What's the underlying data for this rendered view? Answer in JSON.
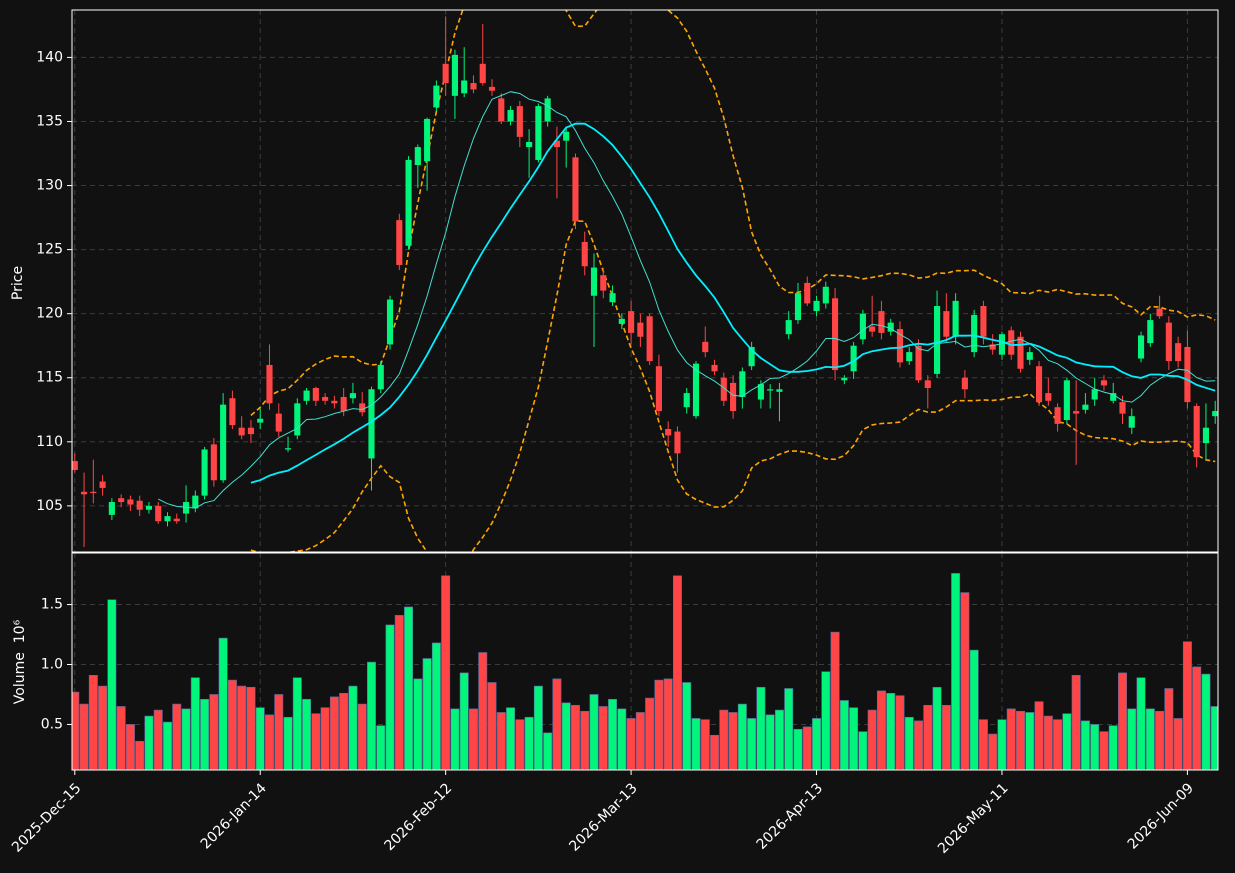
{
  "chart_data": {
    "type": "candlestick",
    "ylabel": "Price",
    "volume_ylabel": "Volume  10⁶",
    "xlim": [
      -0.3,
      123.3
    ],
    "xticks": [
      {
        "value": 0,
        "label": "2025-Dec-15"
      },
      {
        "value": 20,
        "label": "2026-Jan-14"
      },
      {
        "value": 40,
        "label": "2026-Feb-12"
      },
      {
        "value": 60,
        "label": "2026-Mar-13"
      },
      {
        "value": 80,
        "label": "2026-Apr-13"
      },
      {
        "value": 100,
        "label": "2026-May-11"
      },
      {
        "value": 120,
        "label": "2026-Jun-09"
      }
    ],
    "ylim": [
      101.4,
      143.7
    ],
    "yticks": [
      105,
      110,
      115,
      120,
      125,
      130,
      135,
      140
    ],
    "volume_ylim": [
      0.12,
      1.93
    ],
    "volume_yticks": [
      0.5,
      {
        "value": 1,
        "label": "1.0"
      },
      1.5
    ],
    "grid": true,
    "up_color": "#00f57a",
    "down_color": "#ff4545",
    "mav": [
      10,
      20
    ],
    "mav_colors": [
      "#40e0d0",
      "#00f0ff"
    ],
    "bollinger": {
      "window": 20,
      "std": 2,
      "color": "#ffa500"
    },
    "open": [
      108.5,
      106.1,
      106.1,
      106.9,
      104.3,
      105.6,
      105.5,
      105.4,
      104.7,
      105.0,
      103.8,
      104.0,
      104.4,
      104.8,
      105.8,
      109.8,
      107.0,
      113.4,
      111.1,
      111.1,
      111.5,
      116.0,
      112.2,
      109.4,
      110.5,
      113.2,
      114.2,
      113.5,
      113.2,
      113.5,
      113.4,
      113.0,
      108.7,
      114.1,
      117.6,
      127.3,
      125.3,
      131.6,
      131.9,
      136.1,
      139.5,
      137.0,
      137.2,
      138.0,
      139.5,
      137.7,
      136.8,
      135.0,
      136.2,
      133.0,
      132.0,
      135.0,
      133.5,
      133.5,
      132.2,
      125.6,
      121.4,
      123.0,
      120.9,
      119.2,
      120.2,
      119.3,
      119.8,
      115.9,
      111.0,
      110.8,
      112.7,
      112.0,
      117.8,
      116.0,
      115.0,
      114.6,
      113.5,
      115.9,
      113.3,
      114.0,
      113.9,
      118.4,
      119.5,
      122.4,
      120.2,
      120.8,
      121.2,
      114.8,
      115.5,
      118.0,
      119.0,
      120.2,
      118.6,
      118.8,
      116.3,
      117.5,
      114.8,
      115.3,
      120.2,
      118.2,
      115.0,
      117.0,
      120.6,
      117.6,
      116.8,
      118.7,
      118.2,
      116.4,
      115.9,
      113.8,
      112.7,
      111.7,
      112.4,
      112.5,
      113.3,
      114.8,
      113.2,
      113.1,
      111.1,
      116.5,
      117.7,
      120.4,
      119.3,
      117.7,
      117.4,
      112.8,
      109.9,
      112.0
    ],
    "high": [
      109.1,
      107.6,
      108.6,
      107.4,
      105.6,
      105.9,
      105.8,
      105.8,
      105.3,
      105.3,
      104.5,
      104.4,
      106.6,
      106.2,
      109.6,
      110.3,
      113.8,
      114.0,
      112.0,
      111.7,
      112.6,
      117.6,
      113.0,
      110.4,
      113.4,
      114.2,
      114.3,
      113.8,
      113.6,
      114.2,
      114.6,
      113.9,
      114.3,
      116.3,
      121.4,
      127.8,
      132.3,
      133.2,
      135.3,
      138.2,
      143.2,
      140.6,
      140.8,
      138.6,
      142.6,
      138.3,
      137.2,
      136.2,
      136.6,
      134.4,
      136.4,
      137.0,
      134.6,
      134.6,
      132.5,
      126.4,
      124.7,
      123.6,
      122.2,
      120.0,
      121.0,
      120.0,
      120.0,
      116.8,
      111.6,
      111.2,
      114.2,
      116.3,
      119.0,
      116.4,
      115.4,
      115.2,
      115.8,
      117.8,
      114.8,
      114.5,
      114.6,
      120.2,
      122.4,
      122.9,
      121.4,
      122.5,
      122.0,
      115.2,
      117.8,
      120.3,
      121.4,
      121.0,
      119.6,
      119.4,
      117.4,
      118.0,
      115.2,
      121.8,
      121.6,
      121.6,
      115.6,
      120.3,
      121.0,
      118.4,
      118.6,
      119.0,
      118.6,
      117.4,
      116.3,
      115.0,
      113.0,
      115.0,
      114.8,
      113.8,
      115.0,
      115.2,
      114.6,
      113.6,
      112.6,
      118.6,
      120.0,
      121.4,
      119.8,
      118.2,
      118.7,
      113.0,
      113.0,
      113.2
    ],
    "low": [
      107.6,
      101.8,
      105.2,
      105.8,
      103.9,
      104.9,
      104.6,
      104.2,
      104.4,
      103.6,
      103.4,
      103.6,
      103.7,
      104.5,
      105.5,
      106.5,
      106.8,
      111.0,
      110.2,
      109.9,
      111.0,
      112.5,
      110.4,
      109.2,
      110.2,
      112.9,
      112.8,
      112.9,
      112.6,
      112.0,
      113.0,
      112.0,
      106.2,
      113.8,
      117.2,
      123.4,
      125.0,
      129.8,
      129.6,
      135.8,
      137.0,
      135.2,
      136.9,
      137.2,
      137.8,
      137.0,
      134.8,
      134.7,
      133.0,
      130.6,
      131.8,
      134.6,
      129.0,
      131.4,
      126.6,
      123.0,
      117.4,
      121.2,
      120.6,
      118.8,
      117.6,
      117.4,
      116.0,
      112.0,
      109.6,
      107.6,
      112.2,
      111.8,
      116.6,
      115.2,
      112.8,
      111.8,
      112.6,
      115.6,
      112.6,
      112.6,
      111.6,
      118.0,
      119.2,
      120.6,
      119.8,
      120.4,
      114.8,
      114.5,
      114.9,
      117.6,
      118.2,
      118.0,
      118.3,
      115.8,
      116.0,
      114.6,
      112.6,
      115.0,
      117.8,
      117.6,
      113.4,
      116.6,
      117.6,
      116.8,
      116.4,
      116.4,
      115.4,
      116.0,
      112.8,
      112.8,
      110.8,
      111.4,
      108.2,
      112.2,
      112.8,
      114.0,
      113.0,
      111.4,
      110.6,
      116.2,
      117.4,
      119.6,
      115.6,
      115.8,
      112.6,
      108.0,
      108.6,
      111.4
    ],
    "close": [
      107.8,
      105.9,
      106.0,
      106.4,
      105.3,
      105.3,
      105.1,
      104.7,
      105.0,
      103.8,
      104.2,
      103.8,
      105.3,
      105.8,
      109.4,
      107.0,
      112.9,
      111.3,
      110.5,
      110.6,
      111.8,
      113.0,
      110.8,
      109.5,
      113.0,
      114.0,
      113.2,
      113.2,
      113.0,
      112.4,
      113.8,
      112.3,
      114.1,
      116.0,
      121.1,
      123.8,
      132.0,
      133.0,
      135.2,
      137.8,
      138.0,
      140.2,
      138.2,
      137.5,
      138.0,
      137.4,
      135.0,
      135.9,
      133.8,
      133.4,
      136.2,
      136.8,
      133.0,
      134.2,
      127.2,
      123.7,
      123.6,
      121.8,
      121.6,
      119.6,
      118.5,
      118.2,
      116.3,
      112.4,
      110.5,
      109.1,
      113.8,
      116.1,
      117.0,
      115.5,
      113.2,
      112.4,
      115.5,
      117.4,
      114.5,
      114.1,
      114.1,
      119.5,
      121.6,
      120.8,
      121.0,
      122.1,
      115.6,
      115.0,
      117.5,
      120.0,
      118.6,
      118.5,
      119.3,
      116.2,
      117.0,
      114.8,
      114.2,
      120.6,
      118.2,
      121.0,
      114.1,
      119.9,
      118.2,
      117.2,
      118.4,
      116.8,
      115.7,
      117.0,
      113.1,
      113.2,
      111.4,
      114.8,
      112.2,
      112.9,
      114.1,
      114.4,
      113.8,
      112.2,
      112.0,
      118.3,
      119.5,
      119.8,
      116.3,
      116.3,
      113.1,
      108.8,
      111.1,
      112.4
    ],
    "volume": [
      0.77,
      0.67,
      0.91,
      0.82,
      1.54,
      0.65,
      0.5,
      0.36,
      0.57,
      0.62,
      0.52,
      0.67,
      0.63,
      0.89,
      0.71,
      0.75,
      1.22,
      0.87,
      0.82,
      0.81,
      0.64,
      0.58,
      0.75,
      0.56,
      0.89,
      0.71,
      0.59,
      0.64,
      0.73,
      0.76,
      0.82,
      0.67,
      1.02,
      0.49,
      1.33,
      1.41,
      1.48,
      0.88,
      1.05,
      1.18,
      1.74,
      0.63,
      0.93,
      0.63,
      1.1,
      0.85,
      0.6,
      0.64,
      0.54,
      0.56,
      0.82,
      0.43,
      0.88,
      0.68,
      0.66,
      0.61,
      0.75,
      0.65,
      0.71,
      0.63,
      0.55,
      0.6,
      0.72,
      0.87,
      0.88,
      1.74,
      0.85,
      0.55,
      0.54,
      0.41,
      0.62,
      0.6,
      0.67,
      0.55,
      0.81,
      0.58,
      0.62,
      0.8,
      0.46,
      0.48,
      0.55,
      0.94,
      1.27,
      0.7,
      0.64,
      0.44,
      0.62,
      0.78,
      0.76,
      0.74,
      0.56,
      0.53,
      0.66,
      0.81,
      0.66,
      1.76,
      1.6,
      1.12,
      0.54,
      0.42,
      0.54,
      0.63,
      0.61,
      0.6,
      0.69,
      0.57,
      0.54,
      0.59,
      0.91,
      0.53,
      0.5,
      0.44,
      0.49,
      0.93,
      0.63,
      0.89,
      0.63,
      0.61,
      0.8,
      0.55,
      1.19,
      0.98,
      0.92,
      0.65
    ]
  }
}
